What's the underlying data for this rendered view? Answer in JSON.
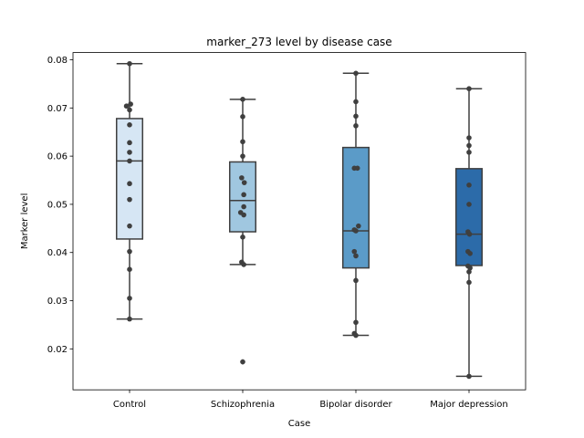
{
  "chart_data": {
    "type": "box",
    "title": "marker_273 level by disease case",
    "xlabel": "Case",
    "ylabel": "Marker level",
    "ylim": [
      0.0115,
      0.0815
    ],
    "yticks": [
      0.02,
      0.03,
      0.04,
      0.05,
      0.06,
      0.07,
      0.08
    ],
    "ytick_labels": [
      "0.02",
      "0.03",
      "0.04",
      "0.05",
      "0.06",
      "0.07",
      "0.08"
    ],
    "grid": false,
    "categories": [
      "Control",
      "Schizophrenia",
      "Bipolar disorder",
      "Major depression"
    ],
    "colors": [
      "#d6e6f4",
      "#a0c7e0",
      "#5b9bc8",
      "#2c6ba9"
    ],
    "edge_color": "#3f3f3f",
    "point_color": "#3f3f3f",
    "boxes": [
      {
        "category": "Control",
        "q1": 0.0428,
        "median": 0.059,
        "q3": 0.0678,
        "whisker_low": 0.0262,
        "whisker_high": 0.0792,
        "outliers": []
      },
      {
        "category": "Schizophrenia",
        "q1": 0.0443,
        "median": 0.0508,
        "q3": 0.0588,
        "whisker_low": 0.0375,
        "whisker_high": 0.0718,
        "outliers": [
          0.0173
        ]
      },
      {
        "category": "Bipolar disorder",
        "q1": 0.0368,
        "median": 0.0445,
        "q3": 0.0618,
        "whisker_low": 0.0228,
        "whisker_high": 0.0772,
        "outliers": []
      },
      {
        "category": "Major depression",
        "q1": 0.0373,
        "median": 0.0438,
        "q3": 0.0574,
        "whisker_low": 0.0143,
        "whisker_high": 0.074,
        "outliers": []
      }
    ],
    "points": [
      {
        "category": "Control",
        "values": [
          0.0792,
          0.0704,
          0.0708,
          0.0696,
          0.0665,
          0.0628,
          0.0608,
          0.059,
          0.0543,
          0.051,
          0.0455,
          0.0402,
          0.0365,
          0.0305,
          0.0262
        ],
        "offsets": [
          0,
          -0.12,
          0.04,
          0,
          0,
          0,
          0,
          0,
          0,
          0,
          0,
          0,
          0,
          0,
          0
        ]
      },
      {
        "category": "Schizophrenia",
        "values": [
          0.0718,
          0.0682,
          0.063,
          0.06,
          0.0555,
          0.0545,
          0.052,
          0.0495,
          0.0483,
          0.0478,
          0.0432,
          0.038,
          0.0375,
          0.0173
        ],
        "offsets": [
          0,
          0,
          0,
          0,
          -0.04,
          0.06,
          0.04,
          0.04,
          -0.08,
          0.04,
          0,
          -0.04,
          0.04,
          0
        ]
      },
      {
        "category": "Bipolar disorder",
        "values": [
          0.0772,
          0.0713,
          0.0683,
          0.0663,
          0.0575,
          0.0575,
          0.0455,
          0.0447,
          0.0445,
          0.0402,
          0.0393,
          0.0342,
          0.0255,
          0.0232,
          0.0228
        ],
        "offsets": [
          0,
          0,
          0,
          0,
          -0.06,
          0.06,
          0.1,
          -0.06,
          0,
          -0.06,
          0,
          0,
          0,
          -0.06,
          0
        ]
      },
      {
        "category": "Major depression",
        "values": [
          0.074,
          0.0638,
          0.0622,
          0.0608,
          0.054,
          0.05,
          0.0443,
          0.0438,
          0.0402,
          0.0398,
          0.0372,
          0.0368,
          0.036,
          0.0338,
          0.0143
        ],
        "offsets": [
          0,
          0,
          0,
          0,
          0,
          0,
          -0.04,
          0.02,
          -0.04,
          0.04,
          -0.04,
          0.04,
          0,
          0,
          0
        ]
      }
    ]
  }
}
